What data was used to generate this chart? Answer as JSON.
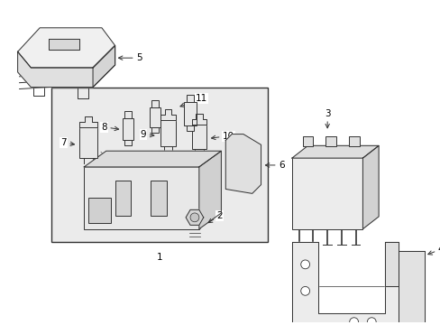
{
  "background_color": "#ffffff",
  "box_fill": "#f5f5f5",
  "line_color": "#333333",
  "text_color": "#000000",
  "fig_width": 4.89,
  "fig_height": 3.6,
  "dpi": 100,
  "lw": 0.7,
  "fontsize": 7.5
}
